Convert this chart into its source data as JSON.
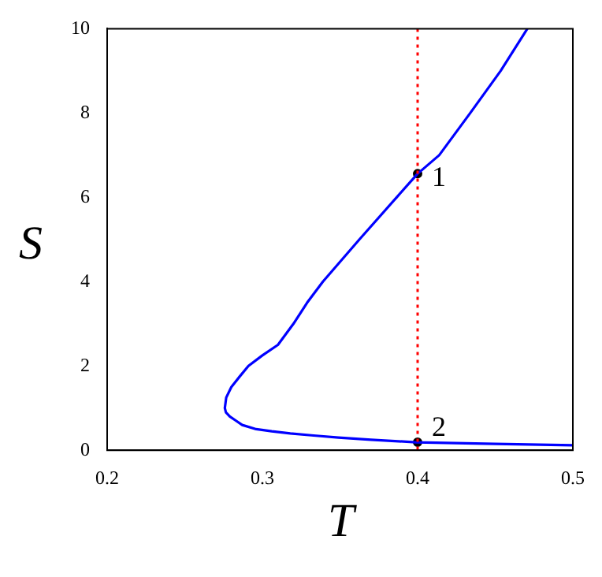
{
  "chart_data": {
    "type": "line",
    "xlabel": "T",
    "ylabel": "S",
    "xlim": [
      0.2,
      0.5
    ],
    "ylim": [
      0,
      10
    ],
    "xticks": [
      0.2,
      0.3,
      0.4,
      0.5
    ],
    "yticks": [
      0,
      2,
      4,
      6,
      8,
      10
    ],
    "grid": false,
    "legend": false,
    "series": [
      {
        "type": "line",
        "color": "#0000ff",
        "marker": "none",
        "x": [
          0.4707,
          0.4535,
          0.4339,
          0.4139,
          0.4,
          0.3865,
          0.3625,
          0.339,
          0.3288,
          0.32,
          0.31,
          0.3,
          0.291,
          0.2854,
          0.28,
          0.2767,
          0.2758,
          0.2765,
          0.279,
          0.283,
          0.287,
          0.296,
          0.306,
          0.318,
          0.333,
          0.349,
          0.37,
          0.399,
          0.45,
          0.5
        ],
        "values": [
          10,
          9,
          8,
          7,
          6.56,
          6,
          5,
          4,
          3.5,
          3,
          2.5,
          2.25,
          2,
          1.75,
          1.5,
          1.25,
          1,
          0.9,
          0.8,
          0.7,
          0.6,
          0.5,
          0.45,
          0.4,
          0.35,
          0.3,
          0.25,
          0.19,
          0.15,
          0.12
        ]
      },
      {
        "type": "scatter",
        "color": "#000000",
        "marker": "circle",
        "x": [
          0.4,
          0.4
        ],
        "values": [
          6.56,
          0.19
        ]
      }
    ],
    "ref_lines": [
      {
        "axis": "x",
        "value": 0.4,
        "color": "#ff0000",
        "line_style": "dotted"
      }
    ],
    "annotations": [
      {
        "text": "1",
        "x": 0.4,
        "y": 6.56
      },
      {
        "text": "2",
        "x": 0.4,
        "y": 0.19
      }
    ]
  }
}
